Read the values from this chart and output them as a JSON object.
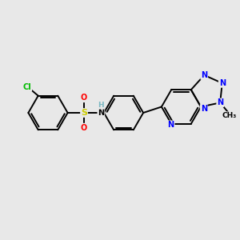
{
  "background_color": "#e8e8e8",
  "atom_colors": {
    "C": "#000000",
    "N": "#0000ff",
    "O": "#ff0000",
    "S": "#cccc00",
    "Cl": "#00bb00",
    "H": "#7ab8c2"
  },
  "bond_lw": 1.4,
  "figsize": [
    3.0,
    3.0
  ],
  "dpi": 100
}
